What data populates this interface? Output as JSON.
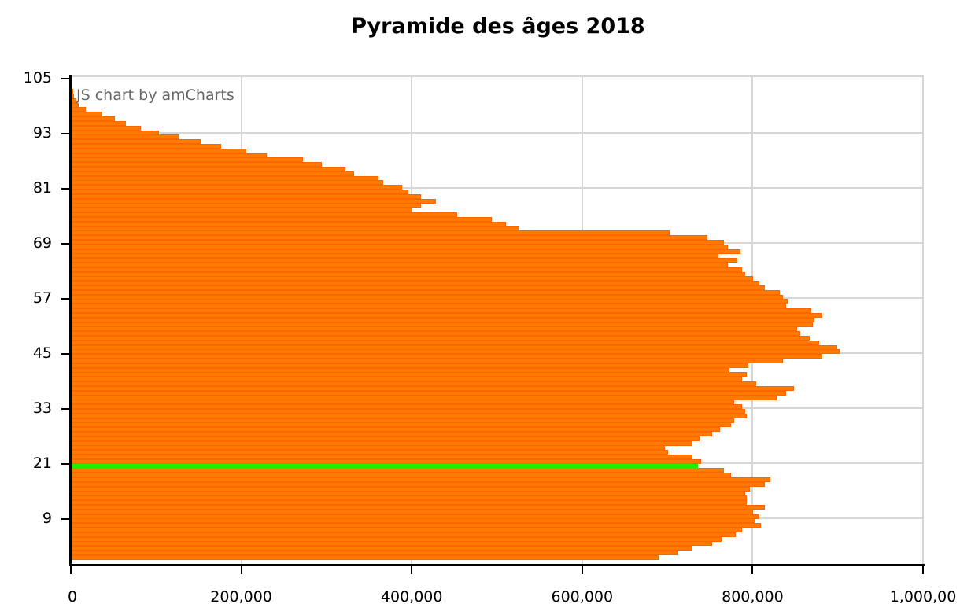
{
  "chart_data": {
    "type": "bar",
    "orientation": "horizontal",
    "title": "Pyramide des âges 2018",
    "xlabel": "",
    "ylabel": "",
    "xlim": [
      0,
      1000000
    ],
    "ylim": [
      0,
      105
    ],
    "grid": true,
    "legend": null,
    "credit": "JS chart by amCharts",
    "x_ticks": [
      "0",
      "200,000",
      "400,000",
      "600,000",
      "800,000",
      "1,000,00"
    ],
    "x_tick_values": [
      0,
      200000,
      400000,
      600000,
      800000,
      1000000
    ],
    "y_ticks": [
      "105",
      "93",
      "81",
      "69",
      "57",
      "45",
      "33",
      "21",
      "9"
    ],
    "y_tick_values": [
      105,
      93,
      81,
      69,
      57,
      45,
      33,
      21,
      9
    ],
    "bar_color": "#ff6600",
    "highlight_color": "#22ee00",
    "highlight_category": 20,
    "categories": [
      0,
      1,
      2,
      3,
      4,
      5,
      6,
      7,
      8,
      9,
      10,
      11,
      12,
      13,
      14,
      15,
      16,
      17,
      18,
      19,
      20,
      21,
      22,
      23,
      24,
      25,
      26,
      27,
      28,
      29,
      30,
      31,
      32,
      33,
      34,
      35,
      36,
      37,
      38,
      39,
      40,
      41,
      42,
      43,
      44,
      45,
      46,
      47,
      48,
      49,
      50,
      51,
      52,
      53,
      54,
      55,
      56,
      57,
      58,
      59,
      60,
      61,
      62,
      63,
      64,
      65,
      66,
      67,
      68,
      69,
      70,
      71,
      72,
      73,
      74,
      75,
      76,
      77,
      78,
      79,
      80,
      81,
      82,
      83,
      84,
      85,
      86,
      87,
      88,
      89,
      90,
      91,
      92,
      93,
      94,
      95,
      96,
      97,
      98,
      99,
      100,
      101,
      102,
      103,
      104,
      105
    ],
    "values": [
      690000,
      712000,
      729000,
      753000,
      764000,
      780000,
      788000,
      810000,
      802000,
      808000,
      801000,
      814000,
      793000,
      793000,
      791000,
      797000,
      814000,
      821000,
      775000,
      766000,
      736000,
      740000,
      729000,
      701000,
      697000,
      729000,
      738000,
      753000,
      762000,
      775000,
      778000,
      793000,
      791000,
      788000,
      778000,
      828000,
      839000,
      849000,
      804000,
      788000,
      793000,
      773000,
      795000,
      836000,
      882000,
      902000,
      899000,
      878000,
      867000,
      856000,
      852000,
      871000,
      873000,
      882000,
      869000,
      839000,
      841000,
      836000,
      832000,
      814000,
      808000,
      801000,
      791000,
      788000,
      771000,
      782000,
      760000,
      786000,
      771000,
      766000,
      747000,
      703000,
      526000,
      511000,
      494000,
      453000,
      401000,
      411000,
      428000,
      411000,
      396000,
      389000,
      367000,
      361000,
      332000,
      322000,
      295000,
      272000,
      230000,
      206000,
      176000,
      152000,
      127000,
      103000,
      82000,
      65000,
      52000,
      37000,
      17500,
      9200,
      6500,
      3700,
      2500,
      2000,
      1800,
      1500
    ]
  }
}
